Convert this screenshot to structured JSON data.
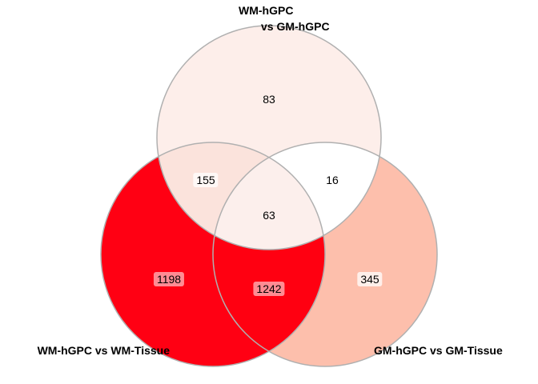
{
  "sets": [
    {
      "id": "A",
      "label_line1": "WM-hGPC",
      "label_line2": "vs GM-hGPC"
    },
    {
      "id": "B",
      "label": "WM-hGPC vs WM-Tissue"
    },
    {
      "id": "C",
      "label": "GM-hGPC vs GM-Tissue"
    }
  ],
  "regions": {
    "A_only": "83",
    "AB": "155",
    "AC": "16",
    "ABC": "63",
    "B_only": "1198",
    "BC": "1242",
    "C_only": "345"
  },
  "colors": {
    "A_only": "#fdeeea",
    "AB": "#fbe3dc",
    "AC": "#ffffff",
    "ABC": "#fcefec",
    "B_only": "#ff0013",
    "BC": "#ff0011",
    "C_only": "#fdbfac",
    "stroke": "#b0b0b0"
  }
}
